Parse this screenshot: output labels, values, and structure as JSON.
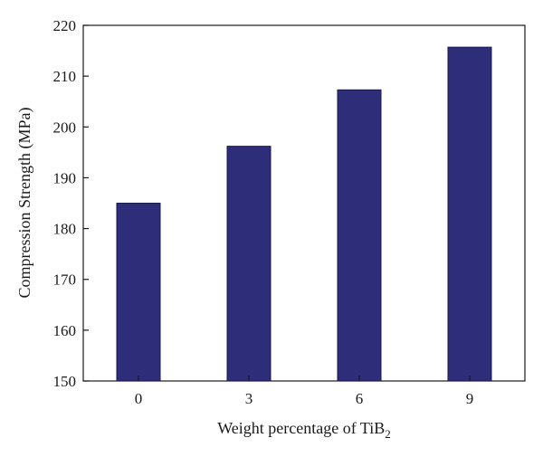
{
  "chart_data": {
    "type": "bar",
    "categories": [
      "0",
      "3",
      "6",
      "9"
    ],
    "values": [
      185.0,
      196.2,
      207.3,
      215.7
    ],
    "title": "",
    "xlabel": {
      "text": "Weight percentage of TiB",
      "subscript": "2"
    },
    "ylabel": "Compression Strength (MPa)",
    "ylim": [
      150,
      220
    ],
    "yticks": [
      150,
      160,
      170,
      180,
      190,
      200,
      210,
      220
    ],
    "grid": false,
    "legend": "none",
    "bar_color": "#2e2d7a"
  }
}
